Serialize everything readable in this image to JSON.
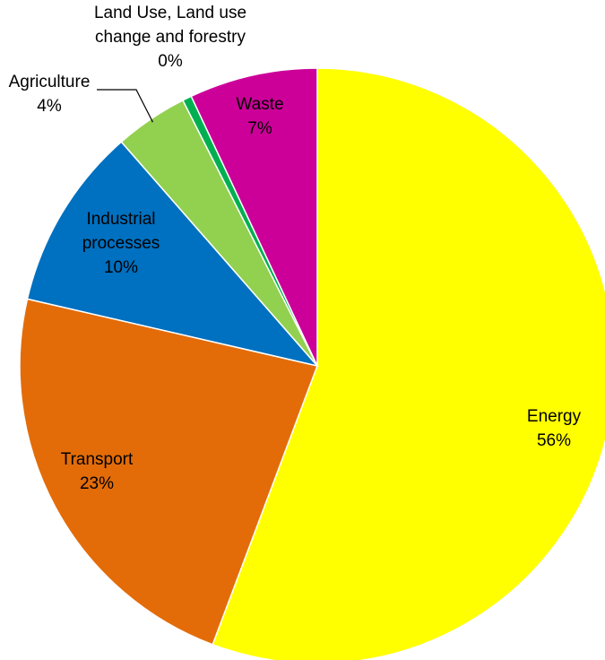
{
  "chart_data": {
    "type": "pie",
    "title": "",
    "start_angle_deg": 0,
    "direction": "clockwise",
    "slices": [
      {
        "name": "Energy",
        "value": 56,
        "percent_label": "56%",
        "label_lines": [
          "Energy",
          "56%"
        ],
        "color": "#FFFF00"
      },
      {
        "name": "Transport",
        "value": 23,
        "percent_label": "23%",
        "label_lines": [
          "Transport",
          "23%"
        ],
        "color": "#E36C09"
      },
      {
        "name": "Industrial processes",
        "value": 10,
        "percent_label": "10%",
        "label_lines": [
          "Industrial",
          "processes",
          "10%"
        ],
        "color": "#0070C0"
      },
      {
        "name": "Agriculture",
        "value": 4,
        "percent_label": "4%",
        "label_lines": [
          "Agriculture",
          "4%"
        ],
        "color": "#92D050"
      },
      {
        "name": "Land Use, Land use change and forestry",
        "value": 0.5,
        "percent_label": "0%",
        "label_lines": [
          "Land Use, Land use",
          "change and forestry",
          "0%"
        ],
        "color": "#00B050"
      },
      {
        "name": "Waste",
        "value": 7,
        "percent_label": "7%",
        "label_lines": [
          "Waste",
          "7%"
        ],
        "color": "#CC0099"
      }
    ]
  }
}
